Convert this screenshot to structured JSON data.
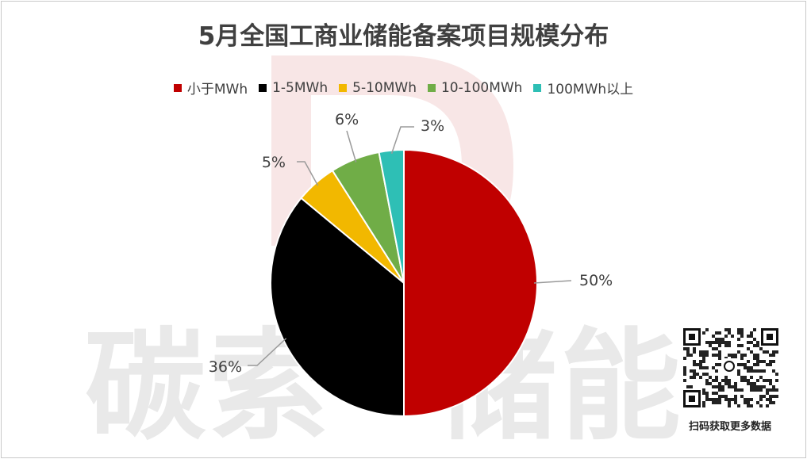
{
  "chart_data": {
    "type": "pie",
    "title": "5月全国工商业储能备案项目规模分布",
    "categories": [
      "小于MWh",
      "1-5MWh",
      "5-10MWh",
      "10-100MWh",
      "100MWh以上"
    ],
    "values": [
      50,
      36,
      5,
      6,
      3
    ],
    "labels": [
      "50%",
      "36%",
      "5%",
      "6%",
      "3%"
    ],
    "colors": [
      "#C00000",
      "#000000",
      "#F2B800",
      "#70AD47",
      "#2EBFB5"
    ],
    "legend_position": "top"
  },
  "watermark": {
    "text_left": "碳索",
    "text_right": "储能"
  },
  "qr": {
    "caption": "扫码获取更多数据"
  }
}
